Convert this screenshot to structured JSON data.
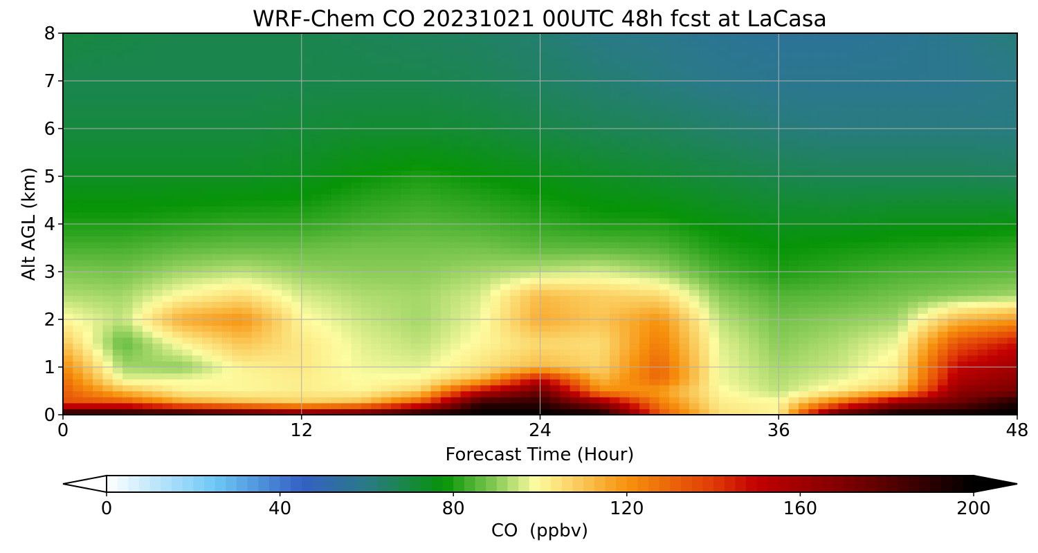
{
  "chart_data": {
    "type": "heatmap",
    "title": "WRF-Chem CO  20231021 00UTC 48h fcst at LaCasa",
    "xlabel": "Forecast Time (Hour)",
    "ylabel": "Alt AGL (km)",
    "xlim": [
      0,
      48
    ],
    "ylim": [
      0,
      8
    ],
    "x_ticks": [
      0,
      12,
      24,
      36,
      48
    ],
    "y_ticks": [
      0,
      1,
      2,
      3,
      4,
      5,
      6,
      7,
      8
    ],
    "grid": true,
    "colorbar": {
      "label": "CO  (ppbv)",
      "orientation": "horizontal",
      "placement": "bottom",
      "range": [
        0,
        200
      ],
      "extend": "both",
      "ticks": [
        0,
        40,
        80,
        120,
        160,
        200
      ],
      "color_stops": [
        {
          "value": 0,
          "color": "#ffffff"
        },
        {
          "value": 25,
          "color": "#6ec8f5"
        },
        {
          "value": 45,
          "color": "#3360c4"
        },
        {
          "value": 60,
          "color": "#2a7a86"
        },
        {
          "value": 78,
          "color": "#079407"
        },
        {
          "value": 90,
          "color": "#8acc58"
        },
        {
          "value": 99,
          "color": "#fdfca0"
        },
        {
          "value": 120,
          "color": "#f7920d"
        },
        {
          "value": 140,
          "color": "#e03a06"
        },
        {
          "value": 150,
          "color": "#c20000"
        },
        {
          "value": 175,
          "color": "#6d0000"
        },
        {
          "value": 200,
          "color": "#000000"
        }
      ]
    },
    "data_sampling": {
      "x": [
        0,
        3,
        6,
        9,
        12,
        15,
        18,
        21,
        24,
        27,
        30,
        33,
        36,
        39,
        42,
        45,
        48
      ],
      "y": [
        0,
        0.25,
        0.5,
        0.75,
        1,
        1.5,
        2,
        2.5,
        3,
        3.5,
        4,
        5,
        6,
        7,
        8
      ],
      "z": [
        [
          200,
          200,
          200,
          190,
          178,
          185,
          200,
          200,
          200,
          200,
          135,
          105,
          100,
          185,
          200,
          200,
          200
        ],
        [
          135,
          135,
          118,
          112,
          108,
          112,
          135,
          190,
          190,
          165,
          125,
          102,
          100,
          128,
          165,
          175,
          195
        ],
        [
          132,
          112,
          101,
          100,
          102,
          100,
          108,
          150,
          175,
          122,
          118,
          100,
          94,
          102,
          112,
          165,
          172
        ],
        [
          128,
          97,
          98,
          100,
          102,
          99,
          100,
          112,
          150,
          112,
          130,
          98,
          93,
          97,
          103,
          155,
          165
        ],
        [
          122,
          92,
          90,
          101,
          103,
          98,
          97,
          104,
          112,
          107,
          130,
          98,
          92,
          95,
          102,
          150,
          160
        ],
        [
          110,
          86,
          100,
          110,
          103,
          97,
          94,
          100,
          106,
          105,
          125,
          97,
          90,
          93,
          98,
          135,
          148
        ],
        [
          100,
          94,
          115,
          120,
          100,
          95,
          92,
          98,
          115,
          110,
          120,
          94,
          88,
          90,
          92,
          112,
          118
        ],
        [
          93,
          92,
          100,
          105,
          96,
          93,
          92,
          96,
          112,
          108,
          106,
          90,
          85,
          86,
          88,
          90,
          92
        ],
        [
          89,
          88,
          92,
          94,
          91,
          90,
          90,
          92,
          94,
          96,
          92,
          84,
          80,
          82,
          84,
          85,
          86
        ],
        [
          84,
          84,
          86,
          87,
          87,
          88,
          88,
          88,
          86,
          86,
          85,
          80,
          78,
          79,
          80,
          81,
          82
        ],
        [
          80,
          80,
          81,
          82,
          82,
          84,
          85,
          84,
          82,
          80,
          80,
          77,
          75,
          75,
          76,
          76,
          77
        ],
        [
          74,
          74,
          74,
          74,
          75,
          78,
          80,
          78,
          76,
          74,
          72,
          70,
          68,
          67,
          67,
          67,
          66
        ],
        [
          70,
          70,
          70,
          70,
          71,
          72,
          72,
          71,
          69,
          67,
          66,
          64,
          62,
          61,
          61,
          61,
          61
        ],
        [
          68,
          68,
          68,
          68,
          68,
          68,
          68,
          67,
          65,
          63,
          61,
          59,
          58,
          58,
          58,
          58,
          60
        ],
        [
          70,
          69,
          68,
          68,
          68,
          67,
          66,
          65,
          63,
          60,
          59,
          57,
          56,
          56,
          57,
          59,
          62
        ]
      ]
    }
  }
}
